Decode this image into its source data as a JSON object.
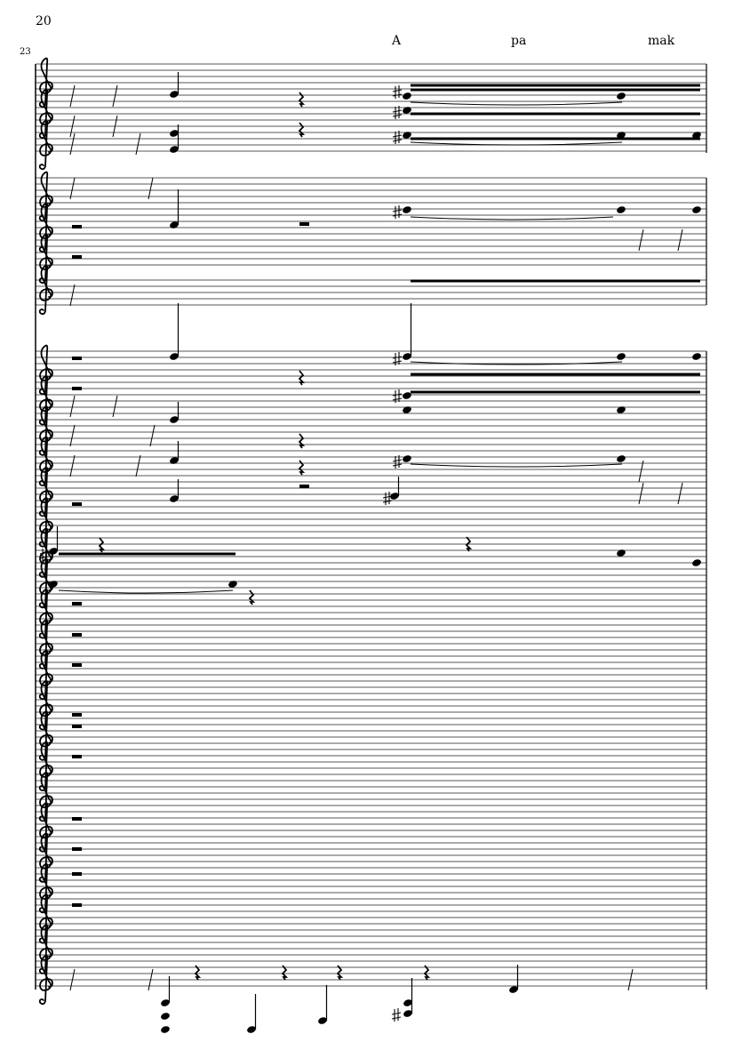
{
  "page": {
    "page_number": "20",
    "measure_number": "23"
  },
  "lyrics": [
    "A",
    "pa",
    "mak"
  ],
  "score": {
    "clef": "treble",
    "staff_count": 28,
    "ink_color": "#000000",
    "staff_line_color": "#555555"
  }
}
